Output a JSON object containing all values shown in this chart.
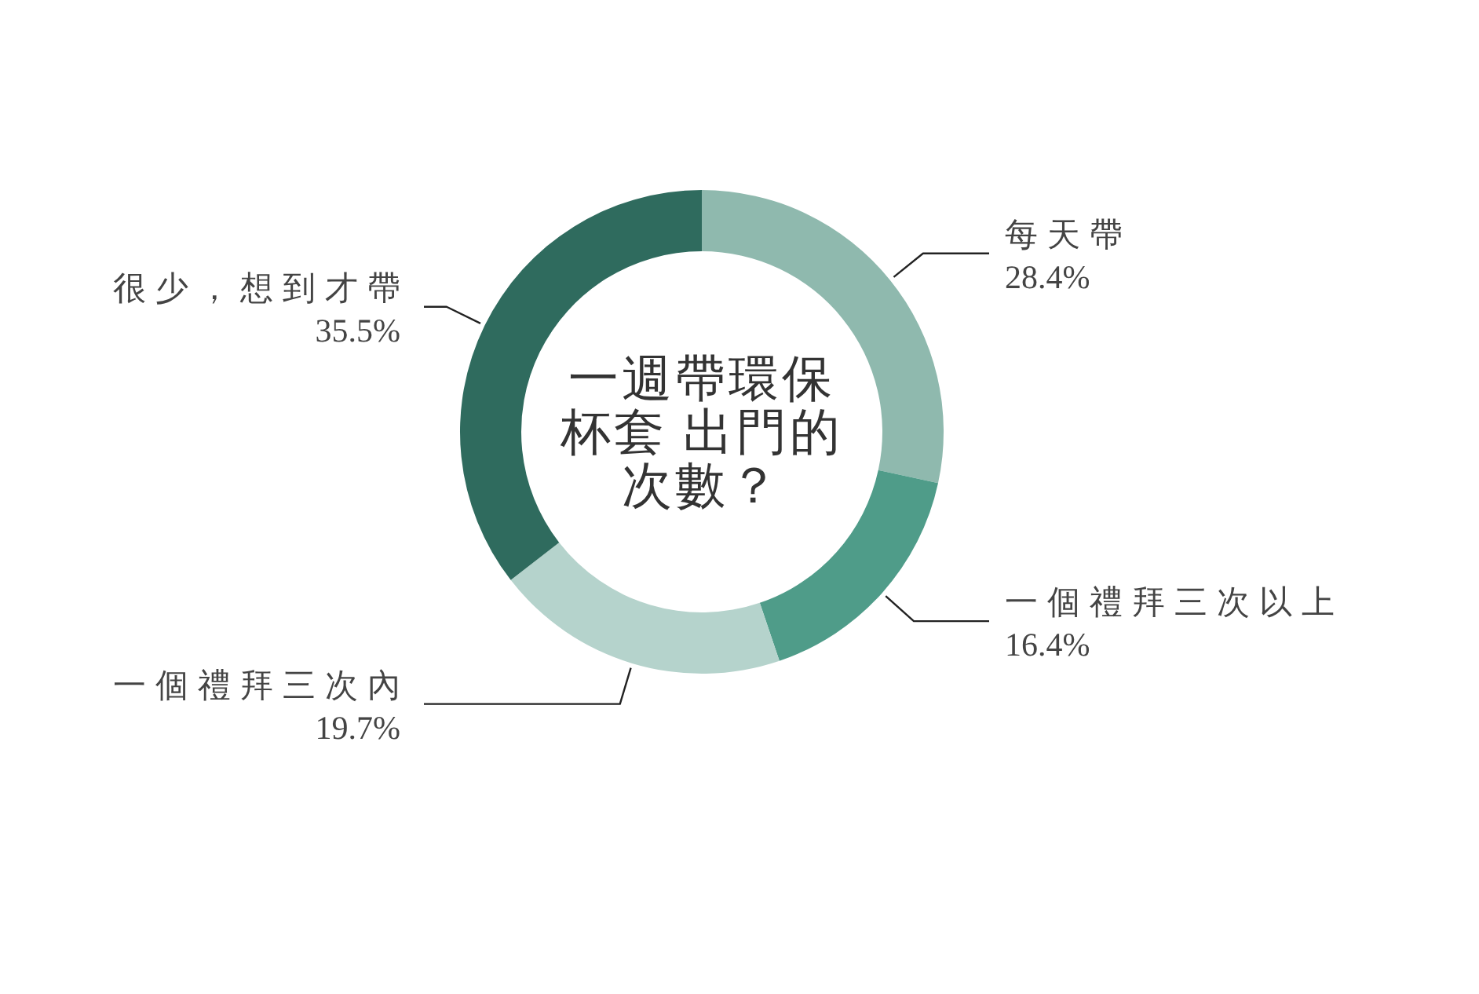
{
  "chart_data": {
    "type": "donut",
    "title": "一週帶環保杯套 出門的次數？",
    "categories": [
      "每天帶",
      "一個禮拜三次以上",
      "一個禮拜三次內",
      "很少，想到才帶"
    ],
    "values": [
      28.4,
      16.4,
      19.7,
      35.5
    ],
    "colors": [
      "#8fb9ae",
      "#4f9c89",
      "#b5d3cc",
      "#2f6b5e"
    ],
    "value_labels": [
      "28.4%",
      "16.4%",
      "19.7%",
      "35.5%"
    ]
  }
}
